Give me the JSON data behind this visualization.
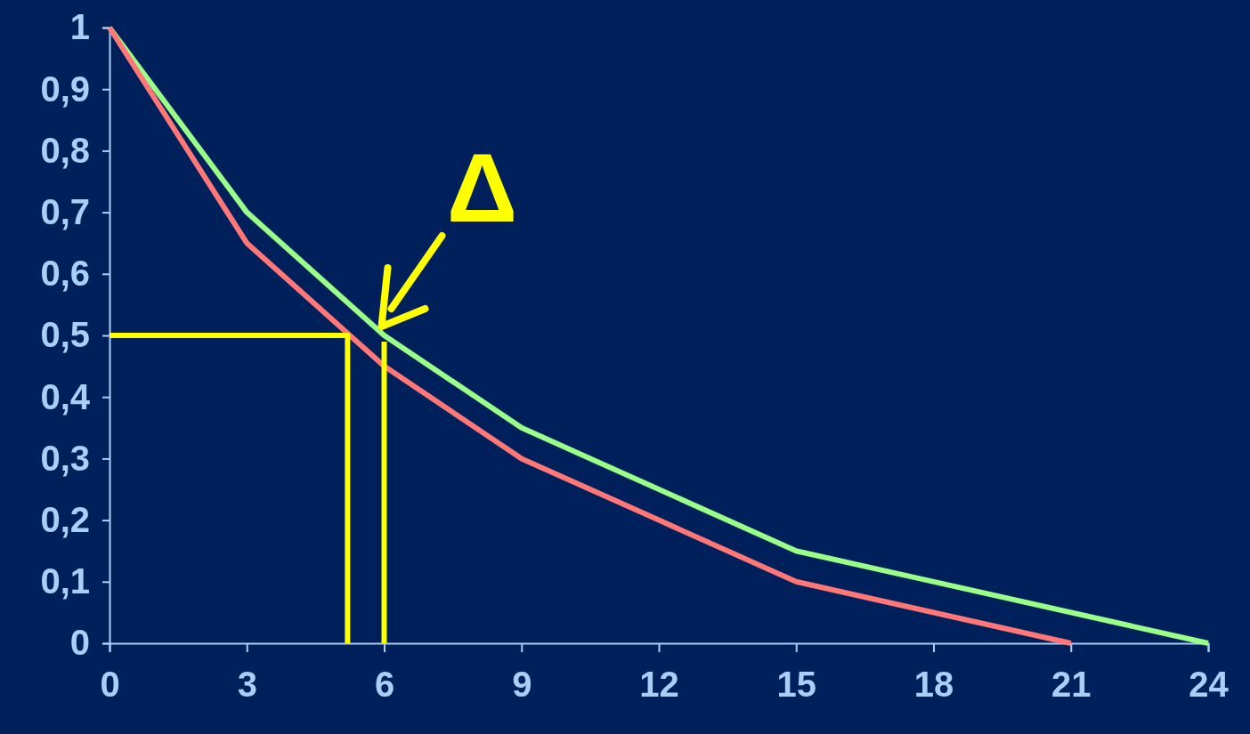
{
  "chart_data": {
    "type": "line",
    "xlim": [
      0,
      24
    ],
    "xticks": [
      0,
      3,
      6,
      9,
      12,
      15,
      18,
      21,
      24
    ],
    "ylim": [
      0,
      1
    ],
    "yticks": [
      0,
      {
        "value": 0.1,
        "label": "0,1"
      },
      {
        "value": 0.2,
        "label": "0,2"
      },
      {
        "value": 0.3,
        "label": "0,3"
      },
      {
        "value": 0.4,
        "label": "0,4"
      },
      {
        "value": 0.5,
        "label": "0,5"
      },
      {
        "value": 0.6,
        "label": "0,6"
      },
      {
        "value": 0.7,
        "label": "0,7"
      },
      {
        "value": 0.8,
        "label": "0,8"
      },
      {
        "value": 0.9,
        "label": "0,9"
      },
      1
    ],
    "grid": false,
    "marker": "none",
    "line_style": "solid",
    "series": [
      {
        "color": "#99ff88",
        "x": [
          0,
          3,
          6,
          9,
          15,
          24
        ],
        "values": [
          1,
          0.7,
          0.5,
          0.35,
          0.15,
          0
        ]
      },
      {
        "color": "#ff7777",
        "x": [
          0,
          3,
          6,
          9,
          12,
          15,
          21
        ],
        "values": [
          1,
          0.65,
          0.45,
          0.3,
          0.2,
          0.1,
          0
        ]
      },
      {
        "color": "#ffff00",
        "x": [
          0,
          5.2,
          5.2
        ],
        "values": [
          0.5,
          0.5,
          0
        ]
      },
      {
        "color": "#ffff00",
        "x": [
          6,
          6
        ],
        "values": [
          0.49,
          0
        ]
      }
    ],
    "annotations": [
      {
        "text": "Δ",
        "x": 6,
        "y": 0.5
      }
    ]
  }
}
